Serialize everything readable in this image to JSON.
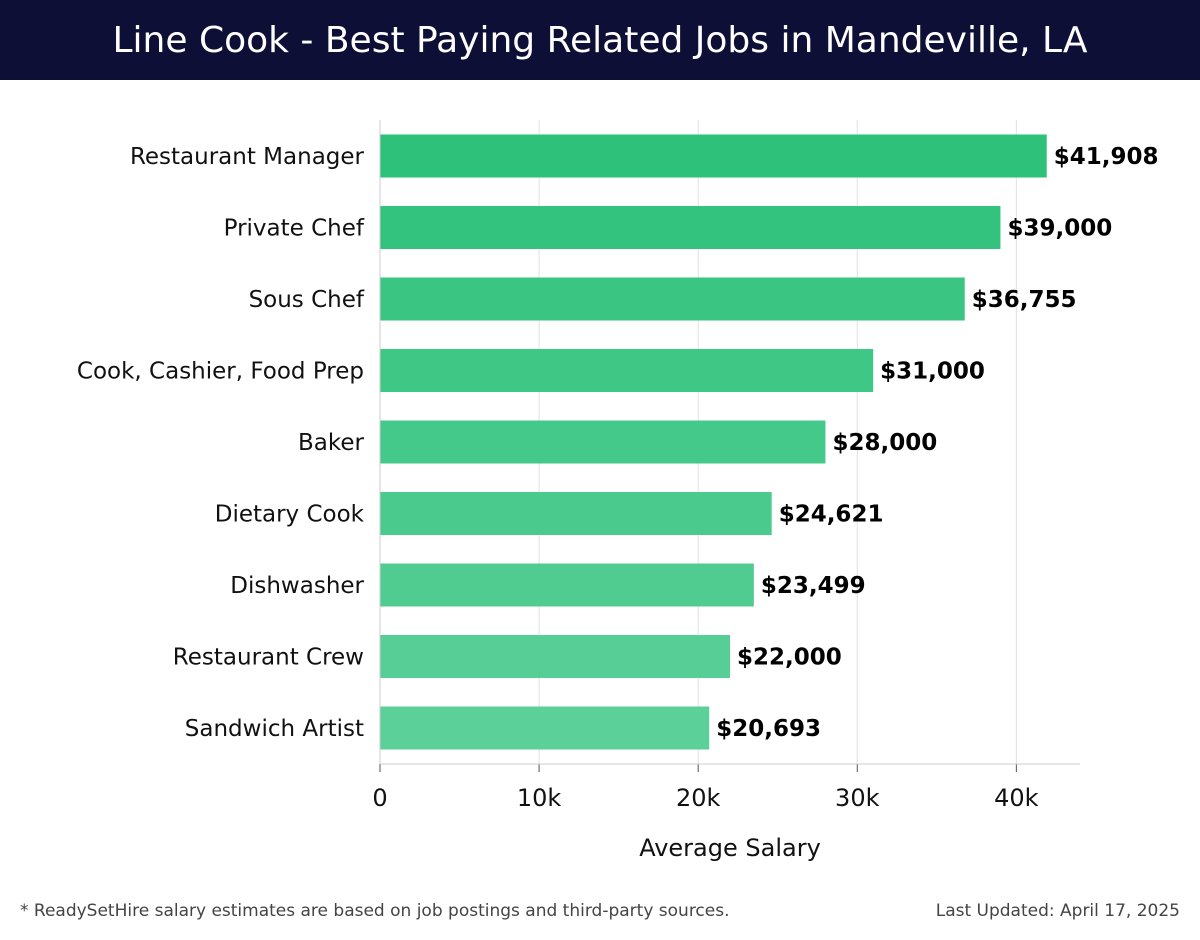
{
  "title": "Line Cook - Best Paying Related Jobs in Mandeville, LA",
  "footer": {
    "note": "* ReadySetHire salary estimates are based on job postings and third-party sources.",
    "updated": "Last Updated: April 17, 2025"
  },
  "chart_data": {
    "type": "bar",
    "orientation": "horizontal",
    "categories": [
      "Restaurant Manager",
      "Private Chef",
      "Sous Chef",
      "Cook, Cashier, Food Prep",
      "Baker",
      "Dietary Cook",
      "Dishwasher",
      "Restaurant Crew",
      "Sandwich Artist"
    ],
    "values": [
      41908,
      39000,
      36755,
      31000,
      28000,
      24621,
      23499,
      22000,
      20693
    ],
    "value_labels": [
      "$41,908",
      "$39,000",
      "$36,755",
      "$31,000",
      "$28,000",
      "$24,621",
      "$23,499",
      "$22,000",
      "$20,693"
    ],
    "xlabel": "Average Salary",
    "ylabel": "",
    "xlim": [
      0,
      44000
    ],
    "xticks": [
      0,
      10000,
      20000,
      30000,
      40000
    ],
    "xtick_labels": [
      "0",
      "10k",
      "20k",
      "30k",
      "40k"
    ],
    "grid": "vertical",
    "colors": {
      "bar_start": "#2ec17a",
      "bar_end": "#5cd099",
      "grid": "#e0e0e0",
      "axis": "#cccccc",
      "header_bg": "#0d0f36"
    }
  }
}
